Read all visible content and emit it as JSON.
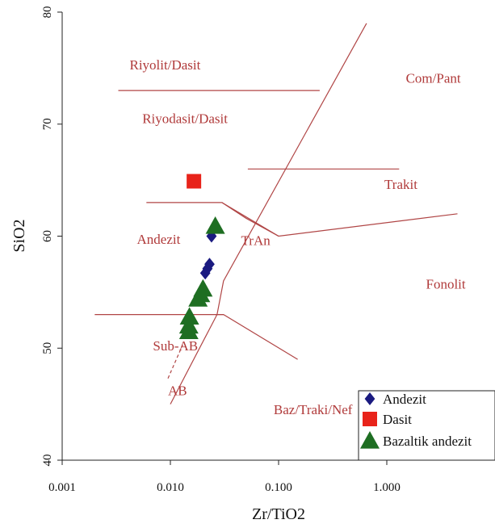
{
  "chart_data": {
    "type": "scatter",
    "xlabel": "Zr/TiO2",
    "ylabel": "SiO2",
    "x_scale": "log",
    "xlim": [
      0.001,
      10
    ],
    "ylim": [
      40,
      80
    ],
    "x_ticks": [
      "0.001",
      "0.010",
      "0.100",
      "1.000"
    ],
    "y_ticks": [
      "40",
      "50",
      "60",
      "70",
      "80"
    ],
    "fields": [
      {
        "label": "Riyolit/Dasit",
        "x": 0.0042,
        "y": 74.9
      },
      {
        "label": "Com/Pant",
        "x": 1.5,
        "y": 73.7
      },
      {
        "label": "Riyodasit/Dasit",
        "x": 0.0055,
        "y": 70.1
      },
      {
        "label": "Trakit",
        "x": 0.95,
        "y": 64.2
      },
      {
        "label": "Andezit",
        "x": 0.0049,
        "y": 59.3
      },
      {
        "label": "TrAn",
        "x": 0.045,
        "y": 59.2
      },
      {
        "label": "Fonolit",
        "x": 2.3,
        "y": 55.3
      },
      {
        "label": "Sub-AB",
        "x": 0.0069,
        "y": 49.8
      },
      {
        "label": "AB",
        "x": 0.0095,
        "y": 45.8
      },
      {
        "label": "Baz/Traki/Nef",
        "x": 0.09,
        "y": 44.1
      }
    ],
    "boundaries": [
      [
        [
          0.01,
          45
        ],
        [
          0.027,
          53
        ],
        [
          0.031,
          56
        ],
        [
          0.65,
          79
        ]
      ],
      [
        [
          0.0033,
          73
        ],
        [
          0.24,
          73
        ]
      ],
      [
        [
          0.052,
          66
        ],
        [
          1.3,
          66
        ]
      ],
      [
        [
          0.006,
          63
        ],
        [
          0.03,
          63
        ],
        [
          0.05,
          61.6
        ],
        [
          0.1,
          60
        ],
        [
          4.5,
          62
        ]
      ],
      [
        [
          0.03,
          63
        ],
        [
          0.1,
          60
        ]
      ],
      [
        [
          0.002,
          53
        ],
        [
          0.031,
          53
        ],
        [
          0.15,
          49
        ]
      ],
      [
        [
          0.026,
          53
        ],
        [
          0.031,
          53
        ]
      ]
    ],
    "sub_ab_ab_dashed": [
      [
        0.0095,
        47.3
      ],
      [
        0.013,
        50.3
      ]
    ],
    "legend_position": "bottom-right",
    "series": [
      {
        "name": "Andezit",
        "marker": "diamond",
        "color": "#1a1a80",
        "points": [
          {
            "x": 0.024,
            "y": 60.0
          },
          {
            "x": 0.023,
            "y": 57.5
          },
          {
            "x": 0.022,
            "y": 57.1
          },
          {
            "x": 0.021,
            "y": 56.7
          }
        ]
      },
      {
        "name": "Dasit",
        "marker": "square",
        "color": "#e8231a",
        "points": [
          {
            "x": 0.0165,
            "y": 64.9
          }
        ]
      },
      {
        "name": "Bazaltik andezit",
        "marker": "triangle",
        "color": "#1e6e22",
        "points": [
          {
            "x": 0.026,
            "y": 60.9
          },
          {
            "x": 0.02,
            "y": 55.3
          },
          {
            "x": 0.019,
            "y": 54.8
          },
          {
            "x": 0.018,
            "y": 54.4
          },
          {
            "x": 0.015,
            "y": 52.8
          },
          {
            "x": 0.0148,
            "y": 52.0
          },
          {
            "x": 0.0148,
            "y": 51.5
          }
        ]
      }
    ]
  }
}
